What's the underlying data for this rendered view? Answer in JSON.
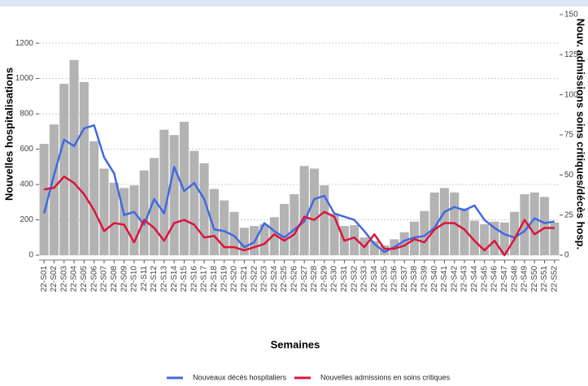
{
  "chart_data": {
    "type": "combo",
    "x_label": "Semaines",
    "y_label": "Nouvelles hospitalisations",
    "y2_label": "Nouv. admissions soins critiques/décès hosp.",
    "categories": [
      "22-S01",
      "22-S02",
      "22-S03",
      "22-S04",
      "22-S05",
      "22-S06",
      "22-S07",
      "22-S08",
      "22-S09",
      "22-S10",
      "22-S11",
      "22-S12",
      "22-S13",
      "22-S14",
      "22-S15",
      "22-S16",
      "22-S17",
      "22-S18",
      "22-S19",
      "22-S20",
      "22-S21",
      "22-S22",
      "22-S23",
      "22-S24",
      "22-S25",
      "22-S26",
      "22-S27",
      "22-S28",
      "22-S29",
      "22-S30",
      "22-S31",
      "22-S32",
      "22-S33",
      "22-S34",
      "22-S35",
      "22-S36",
      "22-S37",
      "22-S38",
      "22-S39",
      "22-S40",
      "22-S41",
      "22-S42",
      "22-S43",
      "22-S44",
      "22-S45",
      "22-S46",
      "22-S47",
      "22-S48",
      "22-S49",
      "22-S50",
      "22-S51",
      "22-S52"
    ],
    "bar_color": "#b3b3b3",
    "values": [
      630,
      740,
      970,
      1105,
      980,
      645,
      490,
      410,
      380,
      395,
      480,
      550,
      710,
      680,
      755,
      590,
      520,
      375,
      310,
      245,
      155,
      165,
      175,
      215,
      290,
      345,
      505,
      490,
      395,
      235,
      165,
      170,
      100,
      80,
      55,
      90,
      130,
      190,
      250,
      355,
      380,
      355,
      265,
      195,
      175,
      190,
      185,
      245,
      345,
      355,
      330,
      185
    ],
    "series": [
      {
        "name": "Nouveaux décès hospitaliers",
        "color": "#4169e1",
        "axis": "y2",
        "values": [
          26,
          50,
          72,
          68,
          79,
          81,
          61,
          51,
          25,
          27,
          19,
          35,
          26,
          55,
          40,
          45,
          35,
          16,
          15,
          12,
          5,
          8,
          20,
          15,
          11,
          16,
          21,
          35,
          37,
          26,
          24,
          22,
          15,
          7,
          2,
          5,
          9,
          11,
          12,
          17,
          27,
          30,
          28,
          31,
          22,
          17,
          13,
          11,
          15,
          23,
          20,
          21
        ]
      },
      {
        "name": "Nouvelles admissions en soins critiques",
        "color": "#dc143c",
        "axis": "y2",
        "values": [
          41,
          42,
          49,
          45,
          38,
          28,
          15,
          20,
          19,
          8,
          22,
          17,
          9,
          20,
          22,
          19,
          11,
          12,
          5,
          5,
          3,
          5,
          7,
          13,
          9,
          13,
          24,
          22,
          27,
          24,
          9,
          11,
          5,
          13,
          4,
          4,
          6,
          10,
          8,
          16,
          20,
          20,
          16,
          9,
          3,
          9,
          0,
          10,
          22,
          13,
          17,
          17
        ]
      }
    ],
    "ylim": [
      0,
      1380
    ],
    "yticks": [
      0,
      200,
      400,
      600,
      800,
      1000,
      1200
    ],
    "y2lim": [
      0,
      152
    ],
    "y2ticks": [
      0,
      25,
      50,
      75,
      100,
      125,
      150
    ],
    "grid": true
  }
}
